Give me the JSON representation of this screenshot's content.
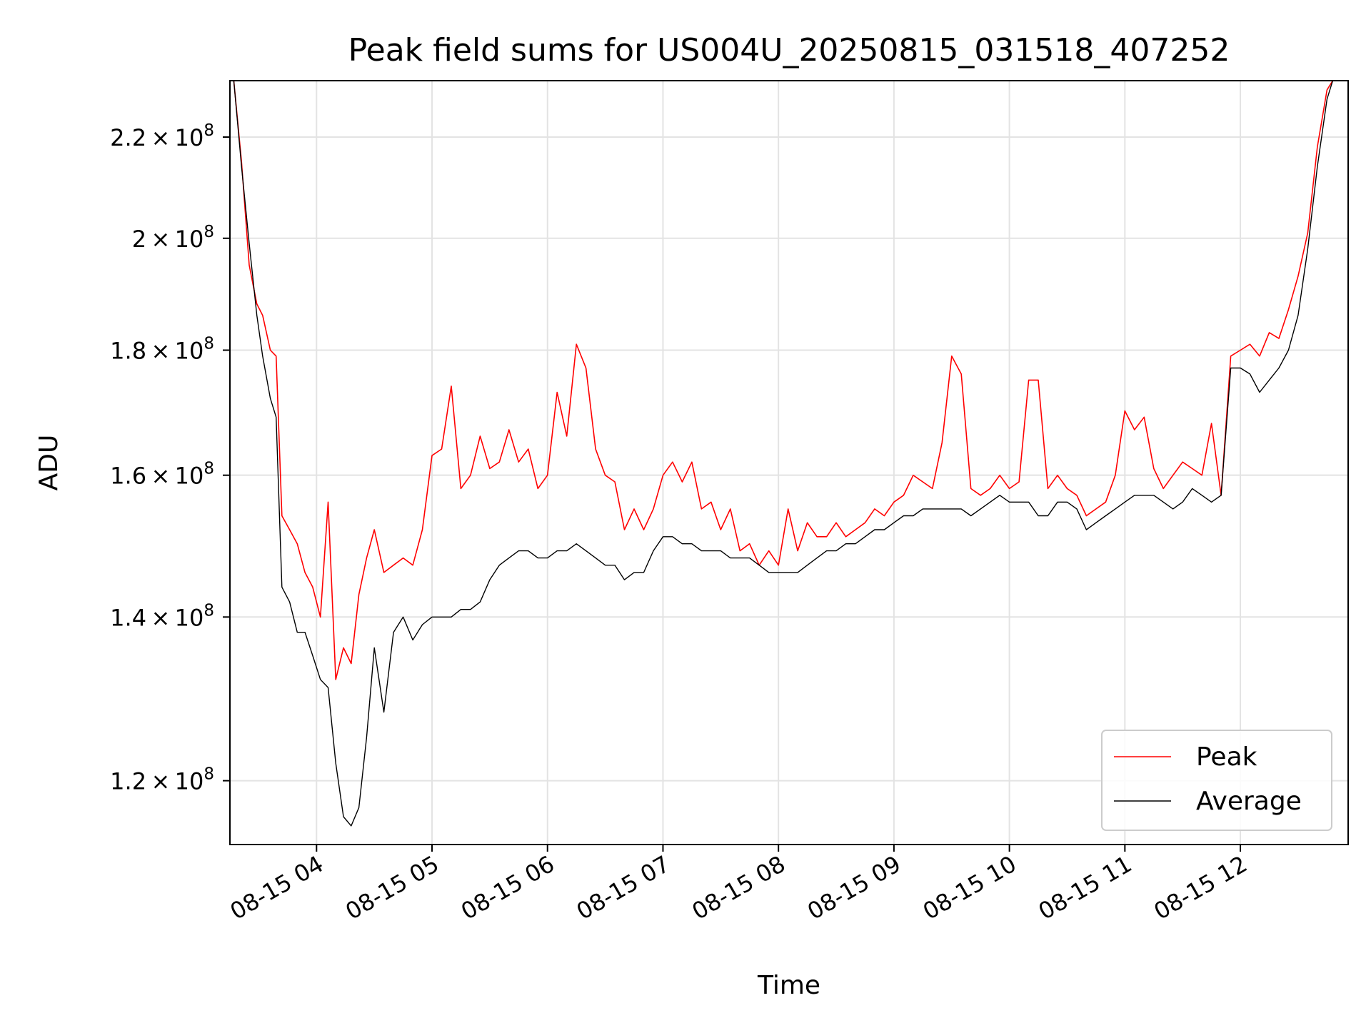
{
  "chart_data": {
    "type": "line",
    "title": "Peak field sums for US004U_20250815_031518_407252",
    "xlabel": "Time",
    "ylabel": "ADU",
    "y_scale": "log",
    "ylim": [
      113000000.0,
      232000000.0
    ],
    "xlim": [
      "08-15 03:15",
      "08-15 12:56"
    ],
    "grid": true,
    "legend_position": "lower-right",
    "x_ticks": [
      "08-15 04",
      "08-15 05",
      "08-15 06",
      "08-15 07",
      "08-15 08",
      "08-15 09",
      "08-15 10",
      "08-15 11",
      "08-15 12"
    ],
    "y_ticks": [
      {
        "value": 120000000.0,
        "mantissa": "1.2",
        "exponent": "8"
      },
      {
        "value": 140000000.0,
        "mantissa": "1.4",
        "exponent": "8"
      },
      {
        "value": 160000000.0,
        "mantissa": "1.6",
        "exponent": "8"
      },
      {
        "value": 180000000.0,
        "mantissa": "1.8",
        "exponent": "8"
      },
      {
        "value": 200000000.0,
        "mantissa": "2",
        "exponent": "8"
      },
      {
        "value": 220000000.0,
        "mantissa": "2.2",
        "exponent": "8"
      }
    ],
    "series": [
      {
        "name": "Peak",
        "color": "#ff0000",
        "points": [
          [
            "08-15 03:17",
            232000000.0
          ],
          [
            "08-15 03:21",
            215000000.0
          ],
          [
            "08-15 03:25",
            195000000.0
          ],
          [
            "08-15 03:29",
            188000000.0
          ],
          [
            "08-15 03:32",
            186000000.0
          ],
          [
            "08-15 03:36",
            180000000.0
          ],
          [
            "08-15 03:39",
            179000000.0
          ],
          [
            "08-15 03:42",
            154000000.0
          ],
          [
            "08-15 03:46",
            152000000.0
          ],
          [
            "08-15 03:50",
            150000000.0
          ],
          [
            "08-15 03:54",
            146000000.0
          ],
          [
            "08-15 03:58",
            144000000.0
          ],
          [
            "08-15 04:02",
            140000000.0
          ],
          [
            "08-15 04:06",
            156000000.0
          ],
          [
            "08-15 04:10",
            132000000.0
          ],
          [
            "08-15 04:14",
            136000000.0
          ],
          [
            "08-15 04:18",
            134000000.0
          ],
          [
            "08-15 04:22",
            143000000.0
          ],
          [
            "08-15 04:26",
            148000000.0
          ],
          [
            "08-15 04:30",
            152000000.0
          ],
          [
            "08-15 04:35",
            146000000.0
          ],
          [
            "08-15 04:40",
            147000000.0
          ],
          [
            "08-15 04:45",
            148000000.0
          ],
          [
            "08-15 04:50",
            147000000.0
          ],
          [
            "08-15 04:55",
            152000000.0
          ],
          [
            "08-15 05:00",
            163000000.0
          ],
          [
            "08-15 05:05",
            164000000.0
          ],
          [
            "08-15 05:10",
            174000000.0
          ],
          [
            "08-15 05:15",
            158000000.0
          ],
          [
            "08-15 05:20",
            160000000.0
          ],
          [
            "08-15 05:25",
            166000000.0
          ],
          [
            "08-15 05:30",
            161000000.0
          ],
          [
            "08-15 05:35",
            162000000.0
          ],
          [
            "08-15 05:40",
            167000000.0
          ],
          [
            "08-15 05:45",
            162000000.0
          ],
          [
            "08-15 05:50",
            164000000.0
          ],
          [
            "08-15 05:55",
            158000000.0
          ],
          [
            "08-15 06:00",
            160000000.0
          ],
          [
            "08-15 06:05",
            173000000.0
          ],
          [
            "08-15 06:10",
            166000000.0
          ],
          [
            "08-15 06:15",
            181000000.0
          ],
          [
            "08-15 06:20",
            177000000.0
          ],
          [
            "08-15 06:25",
            164000000.0
          ],
          [
            "08-15 06:30",
            160000000.0
          ],
          [
            "08-15 06:35",
            159000000.0
          ],
          [
            "08-15 06:40",
            152000000.0
          ],
          [
            "08-15 06:45",
            155000000.0
          ],
          [
            "08-15 06:50",
            152000000.0
          ],
          [
            "08-15 06:55",
            155000000.0
          ],
          [
            "08-15 07:00",
            160000000.0
          ],
          [
            "08-15 07:05",
            162000000.0
          ],
          [
            "08-15 07:10",
            159000000.0
          ],
          [
            "08-15 07:15",
            162000000.0
          ],
          [
            "08-15 07:20",
            155000000.0
          ],
          [
            "08-15 07:25",
            156000000.0
          ],
          [
            "08-15 07:30",
            152000000.0
          ],
          [
            "08-15 07:35",
            155000000.0
          ],
          [
            "08-15 07:40",
            149000000.0
          ],
          [
            "08-15 07:45",
            150000000.0
          ],
          [
            "08-15 07:50",
            147000000.0
          ],
          [
            "08-15 07:55",
            149000000.0
          ],
          [
            "08-15 08:00",
            147000000.0
          ],
          [
            "08-15 08:05",
            155000000.0
          ],
          [
            "08-15 08:10",
            149000000.0
          ],
          [
            "08-15 08:15",
            153000000.0
          ],
          [
            "08-15 08:20",
            151000000.0
          ],
          [
            "08-15 08:25",
            151000000.0
          ],
          [
            "08-15 08:30",
            153000000.0
          ],
          [
            "08-15 08:35",
            151000000.0
          ],
          [
            "08-15 08:40",
            152000000.0
          ],
          [
            "08-15 08:45",
            153000000.0
          ],
          [
            "08-15 08:50",
            155000000.0
          ],
          [
            "08-15 08:55",
            154000000.0
          ],
          [
            "08-15 09:00",
            156000000.0
          ],
          [
            "08-15 09:05",
            157000000.0
          ],
          [
            "08-15 09:10",
            160000000.0
          ],
          [
            "08-15 09:15",
            159000000.0
          ],
          [
            "08-15 09:20",
            158000000.0
          ],
          [
            "08-15 09:25",
            165000000.0
          ],
          [
            "08-15 09:30",
            179000000.0
          ],
          [
            "08-15 09:35",
            176000000.0
          ],
          [
            "08-15 09:40",
            158000000.0
          ],
          [
            "08-15 09:45",
            157000000.0
          ],
          [
            "08-15 09:50",
            158000000.0
          ],
          [
            "08-15 09:55",
            160000000.0
          ],
          [
            "08-15 10:00",
            158000000.0
          ],
          [
            "08-15 10:05",
            159000000.0
          ],
          [
            "08-15 10:10",
            175000000.0
          ],
          [
            "08-15 10:15",
            175000000.0
          ],
          [
            "08-15 10:20",
            158000000.0
          ],
          [
            "08-15 10:25",
            160000000.0
          ],
          [
            "08-15 10:30",
            158000000.0
          ],
          [
            "08-15 10:35",
            157000000.0
          ],
          [
            "08-15 10:40",
            154000000.0
          ],
          [
            "08-15 10:45",
            155000000.0
          ],
          [
            "08-15 10:50",
            156000000.0
          ],
          [
            "08-15 10:55",
            160000000.0
          ],
          [
            "08-15 11:00",
            170000000.0
          ],
          [
            "08-15 11:05",
            167000000.0
          ],
          [
            "08-15 11:10",
            169000000.0
          ],
          [
            "08-15 11:15",
            161000000.0
          ],
          [
            "08-15 11:20",
            158000000.0
          ],
          [
            "08-15 11:25",
            160000000.0
          ],
          [
            "08-15 11:30",
            162000000.0
          ],
          [
            "08-15 11:35",
            161000000.0
          ],
          [
            "08-15 11:40",
            160000000.0
          ],
          [
            "08-15 11:45",
            168000000.0
          ],
          [
            "08-15 11:50",
            157000000.0
          ],
          [
            "08-15 11:55",
            179000000.0
          ],
          [
            "08-15 12:00",
            180000000.0
          ],
          [
            "08-15 12:05",
            181000000.0
          ],
          [
            "08-15 12:10",
            179000000.0
          ],
          [
            "08-15 12:15",
            183000000.0
          ],
          [
            "08-15 12:20",
            182000000.0
          ],
          [
            "08-15 12:25",
            187000000.0
          ],
          [
            "08-15 12:30",
            193000000.0
          ],
          [
            "08-15 12:35",
            201000000.0
          ],
          [
            "08-15 12:40",
            218000000.0
          ],
          [
            "08-15 12:45",
            230000000.0
          ],
          [
            "08-15 12:48",
            232000000.0
          ]
        ]
      },
      {
        "name": "Average",
        "color": "#000000",
        "points": [
          [
            "08-15 03:17",
            232000000.0
          ],
          [
            "08-15 03:21",
            214000000.0
          ],
          [
            "08-15 03:25",
            199000000.0
          ],
          [
            "08-15 03:29",
            186000000.0
          ],
          [
            "08-15 03:32",
            179000000.0
          ],
          [
            "08-15 03:36",
            172000000.0
          ],
          [
            "08-15 03:39",
            169000000.0
          ],
          [
            "08-15 03:42",
            144000000.0
          ],
          [
            "08-15 03:46",
            142000000.0
          ],
          [
            "08-15 03:50",
            138000000.0
          ],
          [
            "08-15 03:54",
            138000000.0
          ],
          [
            "08-15 03:58",
            135000000.0
          ],
          [
            "08-15 04:02",
            132000000.0
          ],
          [
            "08-15 04:06",
            131000000.0
          ],
          [
            "08-15 04:10",
            122000000.0
          ],
          [
            "08-15 04:14",
            116000000.0
          ],
          [
            "08-15 04:18",
            115000000.0
          ],
          [
            "08-15 04:22",
            117000000.0
          ],
          [
            "08-15 04:26",
            125000000.0
          ],
          [
            "08-15 04:30",
            136000000.0
          ],
          [
            "08-15 04:35",
            128000000.0
          ],
          [
            "08-15 04:40",
            138000000.0
          ],
          [
            "08-15 04:45",
            140000000.0
          ],
          [
            "08-15 04:50",
            137000000.0
          ],
          [
            "08-15 04:55",
            139000000.0
          ],
          [
            "08-15 05:00",
            140000000.0
          ],
          [
            "08-15 05:05",
            140000000.0
          ],
          [
            "08-15 05:10",
            140000000.0
          ],
          [
            "08-15 05:15",
            141000000.0
          ],
          [
            "08-15 05:20",
            141000000.0
          ],
          [
            "08-15 05:25",
            142000000.0
          ],
          [
            "08-15 05:30",
            145000000.0
          ],
          [
            "08-15 05:35",
            147000000.0
          ],
          [
            "08-15 05:40",
            148000000.0
          ],
          [
            "08-15 05:45",
            149000000.0
          ],
          [
            "08-15 05:50",
            149000000.0
          ],
          [
            "08-15 05:55",
            148000000.0
          ],
          [
            "08-15 06:00",
            148000000.0
          ],
          [
            "08-15 06:05",
            149000000.0
          ],
          [
            "08-15 06:10",
            149000000.0
          ],
          [
            "08-15 06:15",
            150000000.0
          ],
          [
            "08-15 06:20",
            149000000.0
          ],
          [
            "08-15 06:25",
            148000000.0
          ],
          [
            "08-15 06:30",
            147000000.0
          ],
          [
            "08-15 06:35",
            147000000.0
          ],
          [
            "08-15 06:40",
            145000000.0
          ],
          [
            "08-15 06:45",
            146000000.0
          ],
          [
            "08-15 06:50",
            146000000.0
          ],
          [
            "08-15 06:55",
            149000000.0
          ],
          [
            "08-15 07:00",
            151000000.0
          ],
          [
            "08-15 07:05",
            151000000.0
          ],
          [
            "08-15 07:10",
            150000000.0
          ],
          [
            "08-15 07:15",
            150000000.0
          ],
          [
            "08-15 07:20",
            149000000.0
          ],
          [
            "08-15 07:25",
            149000000.0
          ],
          [
            "08-15 07:30",
            149000000.0
          ],
          [
            "08-15 07:35",
            148000000.0
          ],
          [
            "08-15 07:40",
            148000000.0
          ],
          [
            "08-15 07:45",
            148000000.0
          ],
          [
            "08-15 07:50",
            147000000.0
          ],
          [
            "08-15 07:55",
            146000000.0
          ],
          [
            "08-15 08:00",
            146000000.0
          ],
          [
            "08-15 08:05",
            146000000.0
          ],
          [
            "08-15 08:10",
            146000000.0
          ],
          [
            "08-15 08:15",
            147000000.0
          ],
          [
            "08-15 08:20",
            148000000.0
          ],
          [
            "08-15 08:25",
            149000000.0
          ],
          [
            "08-15 08:30",
            149000000.0
          ],
          [
            "08-15 08:35",
            150000000.0
          ],
          [
            "08-15 08:40",
            150000000.0
          ],
          [
            "08-15 08:45",
            151000000.0
          ],
          [
            "08-15 08:50",
            152000000.0
          ],
          [
            "08-15 08:55",
            152000000.0
          ],
          [
            "08-15 09:00",
            153000000.0
          ],
          [
            "08-15 09:05",
            154000000.0
          ],
          [
            "08-15 09:10",
            154000000.0
          ],
          [
            "08-15 09:15",
            155000000.0
          ],
          [
            "08-15 09:20",
            155000000.0
          ],
          [
            "08-15 09:25",
            155000000.0
          ],
          [
            "08-15 09:30",
            155000000.0
          ],
          [
            "08-15 09:35",
            155000000.0
          ],
          [
            "08-15 09:40",
            154000000.0
          ],
          [
            "08-15 09:45",
            155000000.0
          ],
          [
            "08-15 09:50",
            156000000.0
          ],
          [
            "08-15 09:55",
            157000000.0
          ],
          [
            "08-15 10:00",
            156000000.0
          ],
          [
            "08-15 10:05",
            156000000.0
          ],
          [
            "08-15 10:10",
            156000000.0
          ],
          [
            "08-15 10:15",
            154000000.0
          ],
          [
            "08-15 10:20",
            154000000.0
          ],
          [
            "08-15 10:25",
            156000000.0
          ],
          [
            "08-15 10:30",
            156000000.0
          ],
          [
            "08-15 10:35",
            155000000.0
          ],
          [
            "08-15 10:40",
            152000000.0
          ],
          [
            "08-15 10:45",
            153000000.0
          ],
          [
            "08-15 10:50",
            154000000.0
          ],
          [
            "08-15 10:55",
            155000000.0
          ],
          [
            "08-15 11:00",
            156000000.0
          ],
          [
            "08-15 11:05",
            157000000.0
          ],
          [
            "08-15 11:10",
            157000000.0
          ],
          [
            "08-15 11:15",
            157000000.0
          ],
          [
            "08-15 11:20",
            156000000.0
          ],
          [
            "08-15 11:25",
            155000000.0
          ],
          [
            "08-15 11:30",
            156000000.0
          ],
          [
            "08-15 11:35",
            158000000.0
          ],
          [
            "08-15 11:40",
            157000000.0
          ],
          [
            "08-15 11:45",
            156000000.0
          ],
          [
            "08-15 11:50",
            157000000.0
          ],
          [
            "08-15 11:55",
            177000000.0
          ],
          [
            "08-15 12:00",
            177000000.0
          ],
          [
            "08-15 12:05",
            176000000.0
          ],
          [
            "08-15 12:10",
            173000000.0
          ],
          [
            "08-15 12:15",
            175000000.0
          ],
          [
            "08-15 12:20",
            177000000.0
          ],
          [
            "08-15 12:25",
            180000000.0
          ],
          [
            "08-15 12:30",
            186000000.0
          ],
          [
            "08-15 12:35",
            198000000.0
          ],
          [
            "08-15 12:40",
            214000000.0
          ],
          [
            "08-15 12:45",
            228000000.0
          ],
          [
            "08-15 12:48",
            232000000.0
          ]
        ]
      }
    ]
  }
}
